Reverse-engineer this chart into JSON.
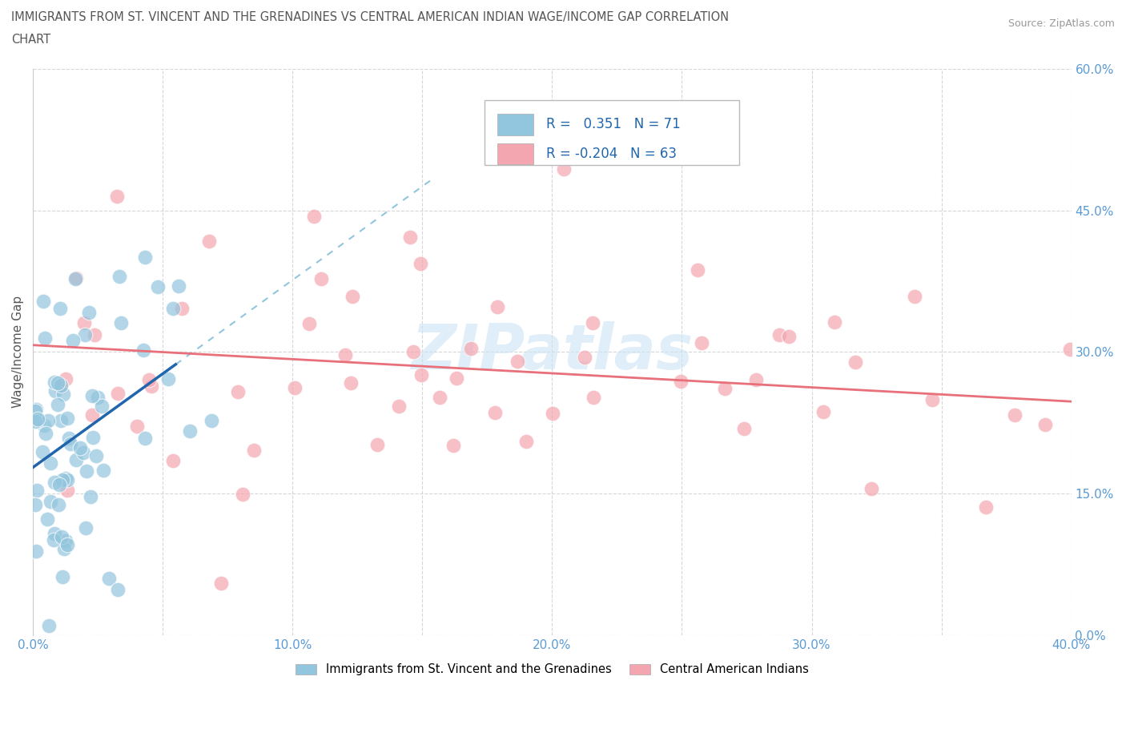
{
  "title_line1": "IMMIGRANTS FROM ST. VINCENT AND THE GRENADINES VS CENTRAL AMERICAN INDIAN WAGE/INCOME GAP CORRELATION",
  "title_line2": "CHART",
  "source_text": "Source: ZipAtlas.com",
  "ylabel": "Wage/Income Gap",
  "xlim": [
    0.0,
    0.4
  ],
  "ylim": [
    0.0,
    0.6
  ],
  "xtick_vals": [
    0.0,
    0.05,
    0.1,
    0.15,
    0.2,
    0.25,
    0.3,
    0.35,
    0.4
  ],
  "xtick_labels": [
    "0.0%",
    "",
    "10.0%",
    "",
    "20.0%",
    "",
    "30.0%",
    "",
    "40.0%"
  ],
  "ytick_vals": [
    0.0,
    0.15,
    0.3,
    0.45,
    0.6
  ],
  "ytick_labels": [
    "0.0%",
    "15.0%",
    "30.0%",
    "45.0%",
    "60.0%"
  ],
  "blue_R": 0.351,
  "blue_N": 71,
  "pink_R": -0.204,
  "pink_N": 63,
  "blue_color": "#92c5de",
  "pink_color": "#f4a6b0",
  "blue_line_color": "#2166ac",
  "blue_dash_color": "#92c5de",
  "pink_line_color": "#e8707a",
  "watermark": "ZIPatlas",
  "legend_label_blue": "Immigrants from St. Vincent and the Grenadines",
  "legend_label_pink": "Central American Indians"
}
